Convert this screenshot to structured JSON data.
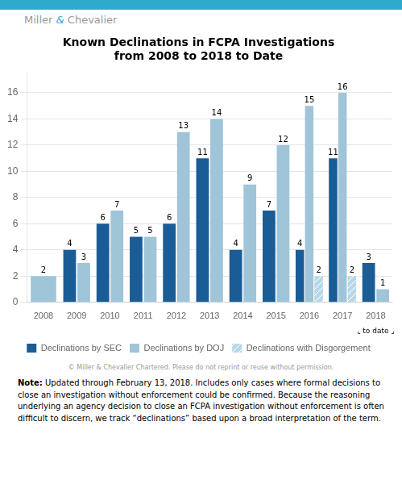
{
  "chart_data": {
    "type": "bar",
    "title": "Known Declinations in FCPA Investigations\nfrom 2008 to 2018 to Date",
    "categories": [
      "2008",
      "2009",
      "2010",
      "2011",
      "2012",
      "2013",
      "2014",
      "2015",
      "2016",
      "2017",
      "2018"
    ],
    "series": [
      {
        "name": "Declinations by SEC",
        "color": "#1a5c96",
        "values": [
          null,
          4,
          6,
          5,
          6,
          11,
          4,
          7,
          4,
          11,
          3
        ]
      },
      {
        "name": "Declinations by DOJ",
        "color": "#a0c4d8",
        "values": [
          2,
          3,
          7,
          5,
          13,
          14,
          9,
          12,
          15,
          16,
          1
        ]
      },
      {
        "name": "Declinations with Disgorgement",
        "color": "#b8d8e8",
        "values": [
          null,
          null,
          null,
          null,
          null,
          null,
          null,
          null,
          2,
          2,
          null
        ]
      }
    ],
    "ylim": [
      0,
      17.5
    ],
    "yticks": [
      0,
      2,
      4,
      6,
      8,
      10,
      12,
      14,
      16
    ],
    "grid": true,
    "legend": "bottom",
    "data_labels": true,
    "annotations": [
      "Miller",
      "&",
      "Chevalier",
      "⌞ to date ⌟",
      "© Miller & Chevalier Chartered. Please do not reprint or reuse without permission.",
      "Note:",
      " Updated through February 13, 2018. Includes only cases where formal decisions to close an investigation without enforcement could be confirmed. Because the reasoning underlying an agency decision to close an FCPA investigation without enforcement is often difficult to discern, we track “declinations” based upon a broad interpretation of the term."
    ]
  }
}
